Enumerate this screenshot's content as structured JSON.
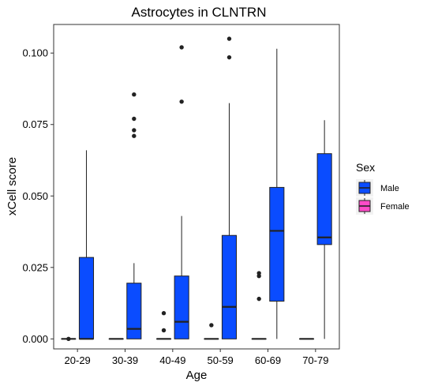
{
  "chart_data": {
    "type": "boxplot",
    "title": "Astrocytes in CLNTRN",
    "xlabel": "Age",
    "ylabel": "xCell score",
    "categories": [
      "20-29",
      "30-39",
      "40-49",
      "50-59",
      "60-69",
      "70-79"
    ],
    "ylim": [
      -0.0035,
      0.11
    ],
    "yticks": [
      0.0,
      0.025,
      0.05,
      0.075,
      0.1
    ],
    "ytick_labels": [
      "0.000",
      "0.025",
      "0.050",
      "0.075",
      "0.100"
    ],
    "grid": false,
    "legend": {
      "title": "Sex",
      "position": "right",
      "entries": [
        {
          "label": "Male",
          "color": "#0a4cff"
        },
        {
          "label": "Female",
          "color": "#ff4bc8"
        }
      ]
    },
    "series": [
      {
        "name": "Female",
        "color": "#ff4bc8",
        "boxes": [
          {
            "category": "20-29",
            "min": 0,
            "q1": 0,
            "median": 0,
            "q3": 0,
            "max": 0,
            "outliers": [
              0
            ]
          },
          {
            "category": "30-39",
            "min": 0,
            "q1": 0,
            "median": 0,
            "q3": 0,
            "max": 0,
            "outliers": []
          },
          {
            "category": "40-49",
            "min": 0,
            "q1": 0,
            "median": 0,
            "q3": 0,
            "max": 0,
            "outliers": [
              0.003,
              0.009
            ]
          },
          {
            "category": "50-59",
            "min": 0,
            "q1": 0,
            "median": 0,
            "q3": 0,
            "max": 0,
            "outliers": [
              0.0048
            ]
          },
          {
            "category": "60-69",
            "min": 0,
            "q1": 0,
            "median": 0,
            "q3": 0,
            "max": 0,
            "outliers": [
              0.014,
              0.022,
              0.023
            ]
          },
          {
            "category": "70-79",
            "min": 0,
            "q1": 0,
            "median": 0,
            "q3": 0,
            "max": 0,
            "outliers": []
          }
        ]
      },
      {
        "name": "Male",
        "color": "#0a4cff",
        "boxes": [
          {
            "category": "20-29",
            "min": 0,
            "q1": 0,
            "median": 0,
            "q3": 0.0285,
            "max": 0.066,
            "outliers": []
          },
          {
            "category": "30-39",
            "min": 0,
            "q1": 0,
            "median": 0.0035,
            "q3": 0.0195,
            "max": 0.0265,
            "outliers": [
              0.071,
              0.073,
              0.077,
              0.0855
            ]
          },
          {
            "category": "40-49",
            "min": 0,
            "q1": 0,
            "median": 0.006,
            "q3": 0.022,
            "max": 0.043,
            "outliers": [
              0.083,
              0.102
            ]
          },
          {
            "category": "50-59",
            "min": 0,
            "q1": 0,
            "median": 0.0112,
            "q3": 0.0362,
            "max": 0.0825,
            "outliers": [
              0.0985,
              0.105
            ]
          },
          {
            "category": "60-69",
            "min": 0,
            "q1": 0.0132,
            "median": 0.0378,
            "q3": 0.053,
            "max": 0.1015,
            "outliers": []
          },
          {
            "category": "70-79",
            "min": 0,
            "q1": 0.033,
            "median": 0.0355,
            "q3": 0.0648,
            "max": 0.0765,
            "outliers": []
          }
        ]
      }
    ]
  }
}
